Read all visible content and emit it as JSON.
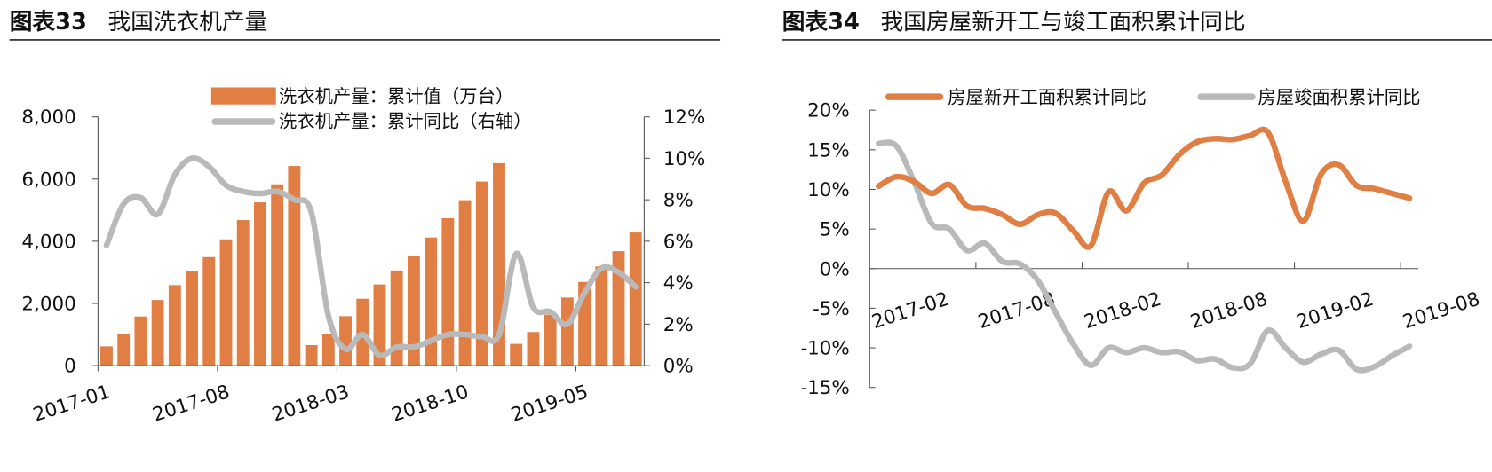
{
  "colors": {
    "orange": "#E07E43",
    "gray": "#B9B9B9",
    "axis": "#555555"
  },
  "chart_data": [
    {
      "type": "bar+line",
      "title_prefix": "图表33",
      "title": "我国洗衣机产量",
      "categories": [
        "2017-01",
        "2017-02",
        "2017-03",
        "2017-04",
        "2017-05",
        "2017-06",
        "2017-07",
        "2017-08",
        "2017-09",
        "2017-10",
        "2017-11",
        "2017-12",
        "2018-01",
        "2018-02",
        "2018-03",
        "2018-04",
        "2018-05",
        "2018-06",
        "2018-07",
        "2018-08",
        "2018-09",
        "2018-10",
        "2018-11",
        "2018-12",
        "2019-01",
        "2019-02",
        "2019-03",
        "2019-04",
        "2019-05",
        "2019-06",
        "2019-07",
        "2019-08"
      ],
      "x_tick_labels": [
        "2017-01",
        "2017-08",
        "2018-03",
        "2018-10",
        "2019-05"
      ],
      "left_axis": {
        "ylim": [
          0,
          8000
        ],
        "ticks": [
          "0",
          "2,000",
          "4,000",
          "6,000",
          "8,000"
        ]
      },
      "right_axis": {
        "ylim": [
          0,
          12
        ],
        "ticks": [
          "0%",
          "2%",
          "4%",
          "6%",
          "8%",
          "10%",
          "12%"
        ]
      },
      "legend": "top-center",
      "series": [
        {
          "name": "洗衣机产量：累计值（万台）",
          "type": "bar",
          "axis": "left",
          "color": "#E07E43",
          "values": [
            620,
            1010,
            1580,
            2110,
            2590,
            3040,
            3490,
            4060,
            4680,
            5250,
            5830,
            6420,
            660,
            1030,
            1590,
            2150,
            2610,
            3060,
            3530,
            4120,
            4740,
            5320,
            5920,
            6510,
            700,
            1080,
            1640,
            2190,
            2690,
            3190,
            3680,
            4280
          ]
        },
        {
          "name": "洗衣机产量：累计同比（右轴）",
          "type": "line",
          "axis": "right",
          "color": "#B9B9B9",
          "values": [
            5.8,
            7.8,
            8.1,
            7.3,
            9.2,
            10.0,
            9.6,
            8.7,
            8.4,
            8.3,
            8.4,
            8.0,
            7.4,
            2.4,
            0.8,
            1.5,
            0.5,
            0.9,
            0.9,
            1.2,
            1.5,
            1.5,
            1.4,
            1.5,
            5.4,
            2.8,
            2.6,
            2.0,
            3.5,
            4.7,
            4.5,
            3.8
          ]
        }
      ]
    },
    {
      "type": "line",
      "title_prefix": "图表34",
      "title": "我国房屋新开工与竣工面积累计同比",
      "categories": [
        "2017-02",
        "2017-03",
        "2017-04",
        "2017-05",
        "2017-06",
        "2017-07",
        "2017-08",
        "2017-09",
        "2017-10",
        "2017-11",
        "2017-12",
        "2018-01",
        "2018-02",
        "2018-03",
        "2018-04",
        "2018-05",
        "2018-06",
        "2018-07",
        "2018-08",
        "2018-09",
        "2018-10",
        "2018-11",
        "2018-12",
        "2019-01",
        "2019-02",
        "2019-03",
        "2019-04",
        "2019-05",
        "2019-06",
        "2019-07",
        "2019-08"
      ],
      "x_tick_labels": [
        "2017-02",
        "2017-08",
        "2018-02",
        "2018-08",
        "2019-02",
        "2019-08"
      ],
      "y_axis": {
        "ylim": [
          -15,
          20
        ],
        "ticks": [
          "-15%",
          "-10%",
          "-5%",
          "0%",
          "5%",
          "10%",
          "15%",
          "20%"
        ]
      },
      "legend": "top",
      "series": [
        {
          "name": "房屋新开工面积累计同比",
          "color": "#E07E43",
          "values": [
            10.4,
            11.6,
            11.0,
            9.5,
            10.6,
            7.9,
            7.6,
            6.8,
            5.6,
            6.8,
            7.0,
            4.8,
            2.9,
            9.7,
            7.3,
            10.8,
            11.8,
            14.4,
            16.0,
            16.4,
            16.3,
            16.8,
            17.2,
            11.0,
            6.0,
            11.9,
            13.1,
            10.5,
            10.1,
            9.5,
            8.9
          ]
        },
        {
          "name": "房屋竣面积累计同比",
          "color": "#B9B9B9",
          "values": [
            15.8,
            15.5,
            11.0,
            5.7,
            5.0,
            2.3,
            3.2,
            0.9,
            0.6,
            -1.5,
            -5.5,
            -9.5,
            -12.2,
            -10.0,
            -10.6,
            -10.0,
            -10.6,
            -10.5,
            -11.6,
            -11.4,
            -12.5,
            -12.0,
            -7.8,
            -10.0,
            -11.8,
            -10.8,
            -10.3,
            -12.7,
            -12.4,
            -11.0,
            -9.8
          ]
        }
      ]
    }
  ]
}
